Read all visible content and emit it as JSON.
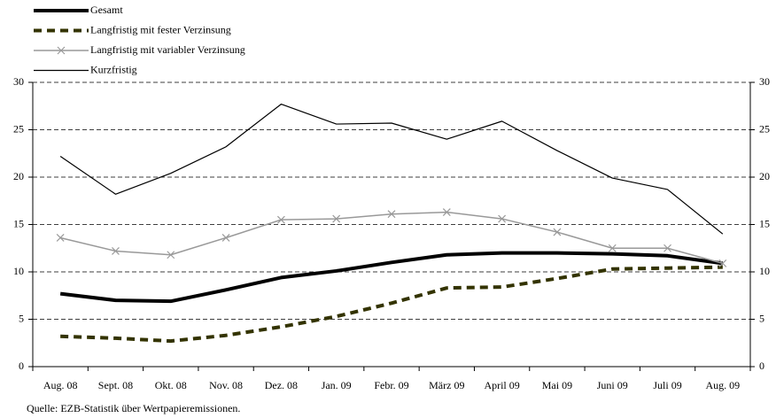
{
  "chart_data": {
    "type": "line",
    "source": "Quelle: EZB-Statistik über Wertpapieremissionen.",
    "categories": [
      "Aug. 08",
      "Sept. 08",
      "Okt. 08",
      "Nov. 08",
      "Dez. 08",
      "Jan. 09",
      "Febr. 09",
      "März 09",
      "April 09",
      "Mai 09",
      "Juni 09",
      "Juli 09",
      "Aug. 09"
    ],
    "series": [
      {
        "name": "Gesamt",
        "color": "#000000",
        "width": 4,
        "dash": "solid",
        "marker": "none",
        "values": [
          7.7,
          7.0,
          6.9,
          8.1,
          9.4,
          10.1,
          11.0,
          11.8,
          12.0,
          12.0,
          11.9,
          11.7,
          10.9
        ]
      },
      {
        "name": "Langfristig mit fester Verzinsung",
        "color": "#333300",
        "width": 4,
        "dash": "dashed",
        "marker": "none",
        "values": [
          3.2,
          3.0,
          2.7,
          3.3,
          4.2,
          5.3,
          6.7,
          8.3,
          8.4,
          9.3,
          10.3,
          10.4,
          10.5
        ]
      },
      {
        "name": "Langfristig mit variabler Verzinsung",
        "color": "#999999",
        "width": 1.5,
        "dash": "solid",
        "marker": "x",
        "values": [
          13.6,
          12.2,
          11.8,
          13.6,
          15.5,
          15.6,
          16.1,
          16.3,
          15.6,
          14.2,
          12.5,
          12.5,
          10.9
        ]
      },
      {
        "name": "Kurzfristig",
        "color": "#000000",
        "width": 1.2,
        "dash": "solid",
        "marker": "none",
        "values": [
          22.2,
          18.2,
          20.4,
          23.2,
          27.7,
          25.6,
          25.7,
          24.0,
          25.9,
          22.8,
          19.9,
          18.7,
          14.0
        ]
      }
    ],
    "ylim": [
      0,
      30
    ],
    "yticks": [
      0,
      5,
      10,
      15,
      20,
      25,
      30
    ],
    "y2lim": [
      0,
      30
    ],
    "y2ticks": [
      0,
      5,
      10,
      15,
      20,
      25,
      30
    ],
    "grid": true,
    "legend": "top-left"
  }
}
